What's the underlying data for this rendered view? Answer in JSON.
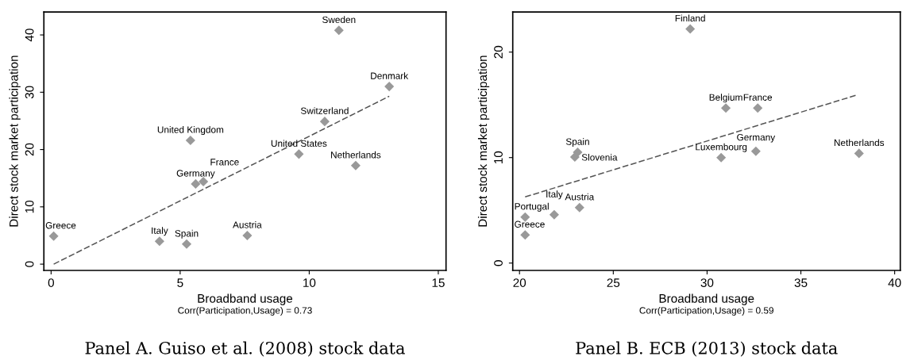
{
  "chart_data": [
    {
      "type": "scatter",
      "xlabel": "Broadband usage",
      "ylabel": "Direct stock market participation",
      "xlim": [
        -0.28,
        15.3
      ],
      "ylim": [
        -1.1,
        44
      ],
      "xticks": [
        0,
        5,
        10,
        15
      ],
      "yticks": [
        0,
        10,
        20,
        30,
        40
      ],
      "grid": false,
      "legend": false,
      "series": [
        {
          "type": "scatter",
          "marker": "diamond",
          "color": "#999999",
          "x": [
            0.1,
            4.2,
            5.25,
            7.6,
            5.6,
            5.9,
            5.4,
            9.6,
            10.6,
            11.8,
            13.1,
            11.15
          ],
          "values": [
            4.9,
            4.0,
            3.5,
            5.0,
            14.0,
            14.4,
            21.6,
            19.2,
            24.9,
            17.2,
            31.0,
            40.8
          ]
        },
        {
          "type": "line",
          "line_style": "dashed",
          "marker": "none",
          "color": "#555555",
          "x": [
            0.1,
            13.1
          ],
          "values": [
            0.0,
            29.3
          ]
        }
      ],
      "annotations": [
        {
          "text": "Greece",
          "x": 0.1,
          "y": 4.9
        },
        {
          "text": "Italy",
          "x": 4.2,
          "y": 4.0
        },
        {
          "text": "Spain",
          "x": 5.25,
          "y": 3.5
        },
        {
          "text": "Austria",
          "x": 7.6,
          "y": 5.0
        },
        {
          "text": "Germany",
          "x": 5.6,
          "y": 14.0
        },
        {
          "text": "France",
          "x": 5.9,
          "y": 14.4
        },
        {
          "text": "United Kingdom",
          "x": 5.4,
          "y": 21.6
        },
        {
          "text": "United States",
          "x": 9.6,
          "y": 19.2
        },
        {
          "text": "Switzerland",
          "x": 10.6,
          "y": 24.9
        },
        {
          "text": "Netherlands",
          "x": 11.8,
          "y": 17.2
        },
        {
          "text": "Denmark",
          "x": 13.1,
          "y": 31.0
        },
        {
          "text": "Sweden",
          "x": 11.15,
          "y": 40.8
        },
        "Corr(Participation,Usage) = 0.73",
        "Panel A. Guiso et al. (2008) stock data"
      ]
    },
    {
      "type": "scatter",
      "xlabel": "Broadband usage",
      "ylabel": "Direct stock market participation",
      "xlim": [
        19.64,
        40.3
      ],
      "ylim": [
        -0.7,
        23.8
      ],
      "xticks": [
        20,
        25,
        30,
        35,
        40
      ],
      "yticks": [
        0,
        10,
        20
      ],
      "grid": false,
      "legend": false,
      "series": [
        {
          "type": "scatter",
          "marker": "diamond",
          "color": "#999999",
          "x": [
            29.1,
            31.0,
            32.7,
            30.75,
            32.6,
            38.1,
            23.1,
            22.95,
            20.3,
            20.3,
            21.85,
            23.2
          ],
          "values": [
            22.2,
            14.7,
            14.7,
            10.0,
            10.6,
            10.4,
            10.5,
            10.05,
            4.36,
            2.67,
            4.58,
            5.26
          ]
        },
        {
          "type": "line",
          "line_style": "dashed",
          "marker": "none",
          "color": "#555555",
          "x": [
            20.3,
            38.03
          ],
          "values": [
            6.27,
            15.96
          ]
        }
      ],
      "annotations": [
        {
          "text": "Finland",
          "x": 29.1,
          "y": 22.2
        },
        {
          "text": "Belgium",
          "x": 31.0,
          "y": 14.7
        },
        {
          "text": "France",
          "x": 32.7,
          "y": 14.7
        },
        {
          "text": "Luxembourg",
          "x": 30.75,
          "y": 10.0
        },
        {
          "text": "Germany",
          "x": 32.6,
          "y": 10.6
        },
        {
          "text": "Netherlands",
          "x": 38.1,
          "y": 10.4
        },
        {
          "text": "Spain",
          "x": 23.1,
          "y": 10.5
        },
        {
          "text": "Slovenia",
          "x": 22.95,
          "y": 10.05
        },
        {
          "text": "Portugal",
          "x": 20.3,
          "y": 4.36
        },
        {
          "text": "Greece",
          "x": 20.3,
          "y": 2.67
        },
        {
          "text": "Italy",
          "x": 21.85,
          "y": 4.58
        },
        {
          "text": "Austria",
          "x": 23.2,
          "y": 5.26
        },
        "Corr(Participation,Usage) = 0.59",
        "Panel B. ECB (2013) stock data"
      ]
    }
  ]
}
